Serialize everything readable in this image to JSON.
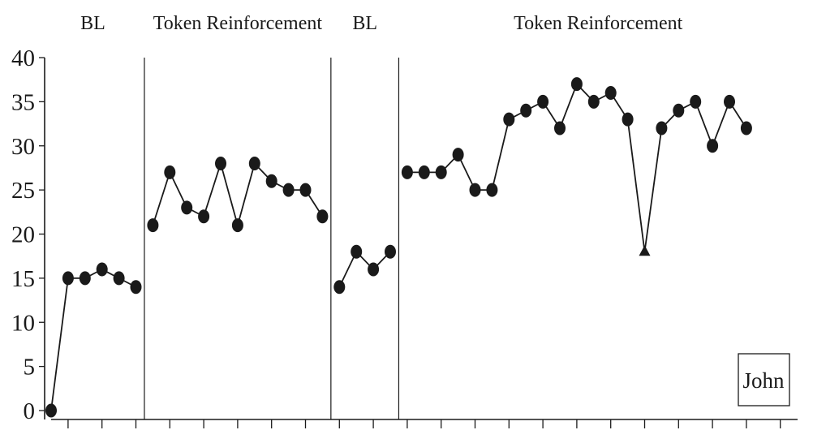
{
  "chart_data": {
    "type": "line",
    "title": "",
    "xlabel": "",
    "ylabel": "",
    "ylim": [
      0,
      40
    ],
    "yticks": [
      "0",
      "5",
      "10",
      "15",
      "20",
      "25",
      "30",
      "35",
      "40"
    ],
    "xlim": [
      1,
      45
    ],
    "grid": false,
    "legend": "none",
    "participant_label": "John",
    "phases": [
      {
        "label": "BL",
        "sessions": [
          1,
          6
        ]
      },
      {
        "label": "Token Reinforcement",
        "sessions": [
          7,
          17
        ]
      },
      {
        "label": "BL",
        "sessions": [
          18,
          21
        ]
      },
      {
        "label": "Token Reinforcement",
        "sessions": [
          22,
          42
        ]
      }
    ],
    "phase_change_after_sessions": [
      6,
      17,
      21
    ],
    "series": [
      {
        "phase": 0,
        "x": [
          1,
          2,
          3,
          4,
          5,
          6
        ],
        "y": [
          0,
          15,
          15,
          16,
          15,
          14
        ],
        "markers": [
          "circle",
          "circle",
          "circle",
          "circle",
          "circle",
          "circle"
        ]
      },
      {
        "phase": 1,
        "x": [
          7,
          8,
          9,
          10,
          11,
          12,
          13,
          14,
          15,
          16,
          17
        ],
        "y": [
          21,
          27,
          23,
          22,
          28,
          21,
          28,
          26,
          25,
          25,
          22
        ],
        "markers": [
          "circle",
          "circle",
          "circle",
          "circle",
          "circle",
          "circle",
          "circle",
          "circle",
          "circle",
          "circle",
          "circle"
        ]
      },
      {
        "phase": 2,
        "x": [
          18,
          19,
          20,
          21
        ],
        "y": [
          14,
          18,
          16,
          18
        ],
        "markers": [
          "circle",
          "circle",
          "circle",
          "circle"
        ]
      },
      {
        "phase": 3,
        "x": [
          22,
          23,
          24,
          25,
          26,
          27,
          28,
          29,
          30,
          31,
          32,
          33,
          34,
          35,
          36,
          37,
          38,
          39,
          40,
          41,
          42
        ],
        "y": [
          27,
          27,
          27,
          29,
          25,
          25,
          33,
          34,
          35,
          32,
          37,
          35,
          36,
          33,
          18,
          32,
          34,
          35,
          30,
          35,
          32
        ],
        "markers": [
          "circle",
          "circle",
          "circle",
          "circle",
          "circle",
          "circle",
          "circle",
          "circle",
          "circle",
          "circle",
          "circle",
          "circle",
          "circle",
          "circle",
          "triangle",
          "circle",
          "circle",
          "circle",
          "circle",
          "circle",
          "circle"
        ]
      }
    ],
    "colors": {
      "ink": "#1a1a1a",
      "background": "#ffffff"
    }
  }
}
